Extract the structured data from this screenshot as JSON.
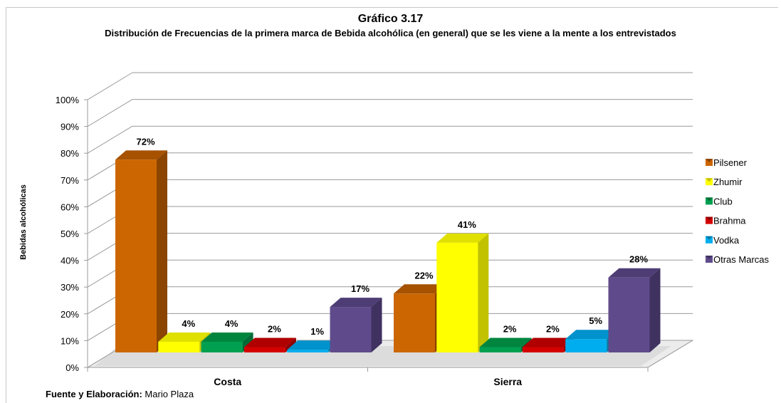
{
  "title": "Gráfico 3.17",
  "subtitle": "Distribución de Frecuencias de la primera marca de Bebida alcohólica (en general) que se les viene a la mente a los entrevistados",
  "source": {
    "label": "Fuente y Elaboración:",
    "value": " Mario Plaza"
  },
  "chart_data": {
    "type": "bar",
    "style": "3d-clustered-column",
    "categories": [
      "Costa",
      "Sierra"
    ],
    "series": [
      {
        "name": "Pilsener",
        "values": [
          72,
          22
        ],
        "labels": [
          "72%",
          "22%"
        ],
        "color": "#CC6600",
        "side": "#8B4500",
        "top": "#A65200"
      },
      {
        "name": "Zhumir",
        "values": [
          4,
          41
        ],
        "labels": [
          "4%",
          "41%"
        ],
        "color": "#FFFF00",
        "side": "#C2C200",
        "top": "#E0E000"
      },
      {
        "name": "Club",
        "values": [
          4,
          2
        ],
        "labels": [
          "4%",
          "2%"
        ],
        "color": "#00A050",
        "side": "#006B35",
        "top": "#00853F"
      },
      {
        "name": "Brahma",
        "values": [
          2,
          2
        ],
        "labels": [
          "2%",
          "2%"
        ],
        "color": "#D40000",
        "side": "#8F0000",
        "top": "#B00000"
      },
      {
        "name": "Vodka",
        "values": [
          1,
          5
        ],
        "labels": [
          "1%",
          "5%"
        ],
        "color": "#00AEEF",
        "side": "#0079A8",
        "top": "#0092CC"
      },
      {
        "name": "Otras Marcas",
        "values": [
          17,
          28
        ],
        "labels": [
          "17%",
          "28%"
        ],
        "color": "#5F4B8B",
        "side": "#3F3160",
        "top": "#4E3D74"
      }
    ],
    "ylabel": "Bebidas alcohólicas",
    "xlabel": "",
    "ylim": [
      0,
      100
    ],
    "yticks": [
      "0%",
      "10%",
      "20%",
      "30%",
      "40%",
      "50%",
      "60%",
      "70%",
      "80%",
      "90%",
      "100%"
    ],
    "grid": true,
    "legend": "right"
  }
}
